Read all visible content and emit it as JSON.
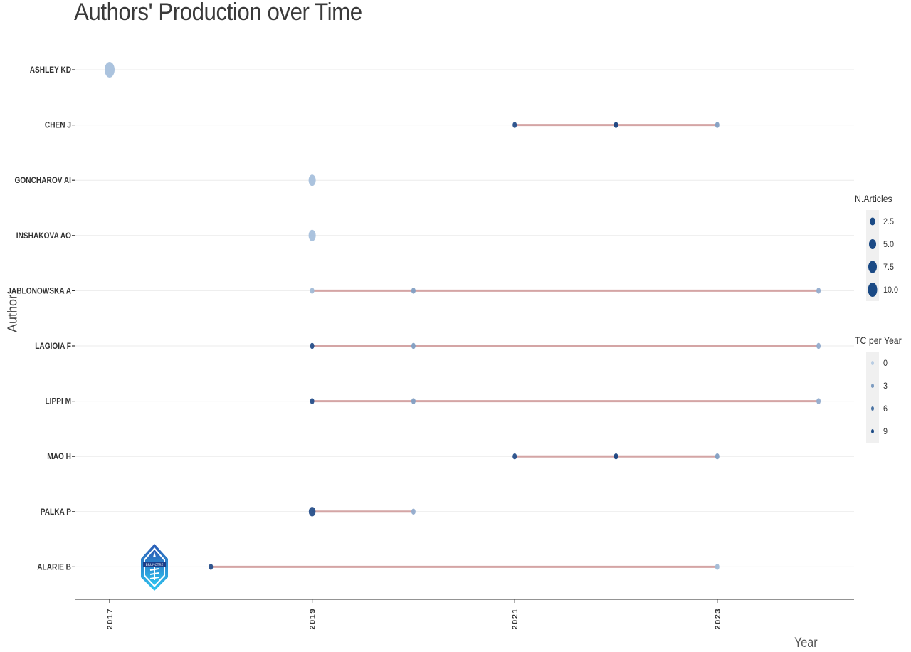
{
  "chart_data": {
    "type": "scatter",
    "subtype": "timeline-dot-line",
    "title": "Authors' Production over Time",
    "xlabel": "Year",
    "ylabel": "Author",
    "xlim": [
      2017,
      2024
    ],
    "x_ticks": [
      2017,
      2019,
      2021,
      2023
    ],
    "grid": "horizontal only, light gray",
    "legend_position": "right",
    "authors": [
      {
        "name": "ASHLEY KD",
        "points": [
          {
            "year": 2017,
            "articles": 1,
            "tc_per_year": 0.5
          }
        ],
        "segment": null
      },
      {
        "name": "CHEN J",
        "points": [
          {
            "year": 2021,
            "articles": 1,
            "tc_per_year": 9
          },
          {
            "year": 2022,
            "articles": 1,
            "tc_per_year": 10
          },
          {
            "year": 2023,
            "articles": 1,
            "tc_per_year": 3
          }
        ],
        "segment": [
          2021,
          2023
        ]
      },
      {
        "name": "GONCHAROV AI",
        "points": [
          {
            "year": 2019,
            "articles": 1,
            "tc_per_year": 0.5
          }
        ],
        "segment": null
      },
      {
        "name": "INSHAKOVA AO",
        "points": [
          {
            "year": 2019,
            "articles": 1,
            "tc_per_year": 0.5
          }
        ],
        "segment": null
      },
      {
        "name": "JABLONOWSKA A",
        "points": [
          {
            "year": 2019,
            "articles": 1,
            "tc_per_year": 1
          },
          {
            "year": 2020,
            "articles": 1,
            "tc_per_year": 3
          },
          {
            "year": 2024,
            "articles": 1,
            "tc_per_year": 2
          }
        ],
        "segment": [
          2019,
          2024
        ]
      },
      {
        "name": "LAGIOIA F",
        "points": [
          {
            "year": 2019,
            "articles": 1,
            "tc_per_year": 9
          },
          {
            "year": 2020,
            "articles": 1,
            "tc_per_year": 3
          },
          {
            "year": 2024,
            "articles": 1,
            "tc_per_year": 2
          }
        ],
        "segment": [
          2019,
          2024
        ]
      },
      {
        "name": "LIPPI M",
        "points": [
          {
            "year": 2019,
            "articles": 1,
            "tc_per_year": 9
          },
          {
            "year": 2020,
            "articles": 1,
            "tc_per_year": 3
          },
          {
            "year": 2024,
            "articles": 1,
            "tc_per_year": 2
          }
        ],
        "segment": [
          2019,
          2024
        ]
      },
      {
        "name": "MAO H",
        "points": [
          {
            "year": 2021,
            "articles": 1,
            "tc_per_year": 9
          },
          {
            "year": 2022,
            "articles": 1,
            "tc_per_year": 10
          },
          {
            "year": 2023,
            "articles": 1,
            "tc_per_year": 3
          }
        ],
        "segment": [
          2021,
          2023
        ]
      },
      {
        "name": "PALKA P",
        "points": [
          {
            "year": 2019,
            "articles": 2,
            "tc_per_year": 9
          },
          {
            "year": 2020,
            "articles": 1,
            "tc_per_year": 2
          }
        ],
        "segment": [
          2019,
          2020
        ]
      },
      {
        "name": "ALARIE B",
        "points": [
          {
            "year": 2018,
            "articles": 1,
            "tc_per_year": 9
          },
          {
            "year": 2023,
            "articles": 1,
            "tc_per_year": 1
          }
        ],
        "segment": [
          2018,
          2023
        ]
      }
    ],
    "legend": {
      "size": {
        "title": "N.Articles",
        "entries": [
          "2.5",
          "5.0",
          "7.5",
          "10.0"
        ]
      },
      "color": {
        "title": "TC per Year",
        "entries": [
          "0",
          "3",
          "6",
          "9"
        ]
      }
    },
    "colors": {
      "segment": "#d4a5a5",
      "point_dark": "#1b4a85",
      "point_light": "#a6c0dc",
      "grid": "#ebebeb",
      "axis": "#555555"
    }
  },
  "header": {
    "title": "Authors' Production over Time"
  },
  "axes": {
    "x_title": "Year",
    "y_title": "Author"
  },
  "legend": {
    "size_title": "N.Articles",
    "size_labels": [
      "2.5",
      "5.0",
      "7.5",
      "10.0"
    ],
    "color_title": "TC per Year",
    "color_labels": [
      "0",
      "3",
      "6",
      "9"
    ]
  },
  "watermark": {
    "icon": "shield-logo-icon",
    "text": "BRUNCTRE"
  }
}
